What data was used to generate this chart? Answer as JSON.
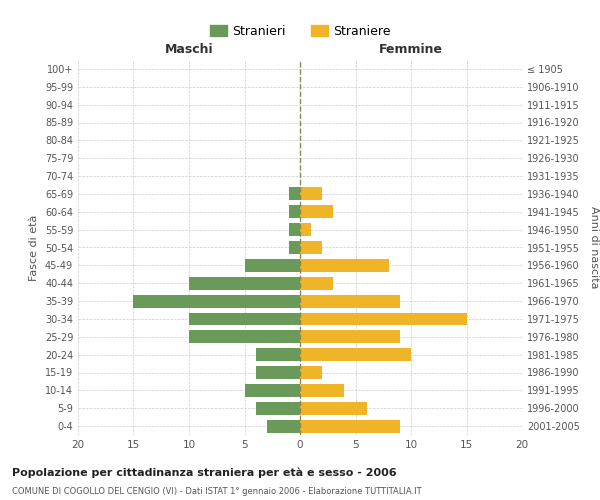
{
  "age_groups": [
    "0-4",
    "5-9",
    "10-14",
    "15-19",
    "20-24",
    "25-29",
    "30-34",
    "35-39",
    "40-44",
    "45-49",
    "50-54",
    "55-59",
    "60-64",
    "65-69",
    "70-74",
    "75-79",
    "80-84",
    "85-89",
    "90-94",
    "95-99",
    "100+"
  ],
  "birth_years": [
    "2001-2005",
    "1996-2000",
    "1991-1995",
    "1986-1990",
    "1981-1985",
    "1976-1980",
    "1971-1975",
    "1966-1970",
    "1961-1965",
    "1956-1960",
    "1951-1955",
    "1946-1950",
    "1941-1945",
    "1936-1940",
    "1931-1935",
    "1926-1930",
    "1921-1925",
    "1916-1920",
    "1911-1915",
    "1906-1910",
    "≤ 1905"
  ],
  "males": [
    3,
    4,
    5,
    4,
    4,
    10,
    10,
    15,
    10,
    5,
    1,
    1,
    1,
    1,
    0,
    0,
    0,
    0,
    0,
    0,
    0
  ],
  "females": [
    9,
    6,
    4,
    2,
    10,
    9,
    15,
    9,
    3,
    8,
    2,
    1,
    3,
    2,
    0,
    0,
    0,
    0,
    0,
    0,
    0
  ],
  "color_male": "#6a9a5a",
  "color_female": "#f0b429",
  "title": "Popolazione per cittadinanza straniera per età e sesso - 2006",
  "subtitle": "COMUNE DI COGOLLO DEL CENGIO (VI) - Dati ISTAT 1° gennaio 2006 - Elaborazione TUTTITALIA.IT",
  "xlabel_left": "Maschi",
  "xlabel_right": "Femmine",
  "ylabel_left": "Fasce di età",
  "ylabel_right": "Anni di nascita",
  "xlim": 20,
  "legend_male": "Stranieri",
  "legend_female": "Straniere",
  "background_color": "#ffffff",
  "grid_color": "#cccccc"
}
